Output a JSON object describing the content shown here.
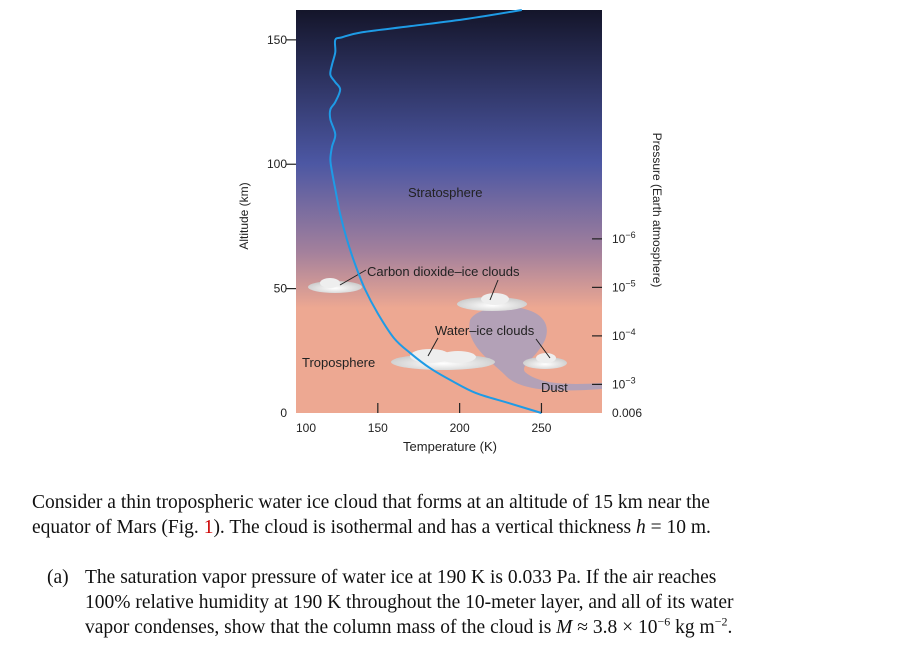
{
  "chart_data": {
    "type": "line",
    "xlabel": "Temperature (K)",
    "ylabel": "Altitude (km)",
    "y2label": "Pressure (Earth atmosphere)",
    "xlim": [
      100,
      287
    ],
    "ylim": [
      0,
      162
    ],
    "xticks": [
      "100",
      "150",
      "200",
      "250"
    ],
    "yticks": [
      "0",
      "50",
      "100",
      "150"
    ],
    "y2ticks": [
      {
        "altitude": 0,
        "base": "0.006",
        "exp": ""
      },
      {
        "altitude": 11.5,
        "base": "10",
        "exp": "−3"
      },
      {
        "altitude": 31,
        "base": "10",
        "exp": "−4"
      },
      {
        "altitude": 50.5,
        "base": "10",
        "exp": "−5"
      },
      {
        "altitude": 70,
        "base": "10",
        "exp": "−6"
      }
    ],
    "series": [
      {
        "color": "#1e9be6",
        "x": [
          250,
          230,
          210,
          195,
          182,
          170,
          160,
          150,
          142,
          136,
          131,
          127,
          124,
          122,
          121,
          122,
          124,
          121,
          121,
          124,
          127,
          124,
          121,
          122,
          124,
          124,
          128,
          140,
          170,
          205,
          238
        ],
        "y": [
          0,
          4,
          8,
          13,
          18,
          24,
          30,
          40,
          50,
          60,
          70,
          80,
          90,
          97,
          102,
          107,
          112,
          118,
          122,
          125,
          130,
          133,
          136,
          140,
          145,
          150,
          151,
          153,
          155.5,
          158.5,
          162
        ]
      }
    ],
    "annotations": {
      "stratosphere": "Stratosphere",
      "troposphere": "Troposphere",
      "co2_clouds": "Carbon dioxide–ice clouds",
      "water_clouds": "Water–ice clouds",
      "dust": "Dust"
    },
    "background_colors": {
      "top": "#14152a",
      "mid": "#4c57a3",
      "low": "#a3809c",
      "surface": "#eda892"
    }
  },
  "text": {
    "p1_line1": "Consider a thin tropospheric water ice cloud that forms at an altitude of 15 km near the",
    "p1_line2a": "equator of Mars (Fig. ",
    "p1_ref": "1",
    "p1_line2b": "). The cloud is isothermal and has a vertical thickness ",
    "p1_var": "h",
    "p1_line2c": " = 10 m.",
    "a_label": "(a)",
    "a_line1": "The saturation vapor pressure of water ice at 190 K is 0.033 Pa.  If the air reaches",
    "a_line2": "100% relative humidity at 190 K throughout the 10-meter layer, and all of its water",
    "a_line3a": "vapor condenses, show that the column mass of the cloud is ",
    "a_var": "M",
    "a_line3b": " ≈ 3.8 × 10",
    "a_exp1": "−6",
    "a_line3c": " kg m",
    "a_exp2": "−2",
    "a_line3d": "."
  }
}
